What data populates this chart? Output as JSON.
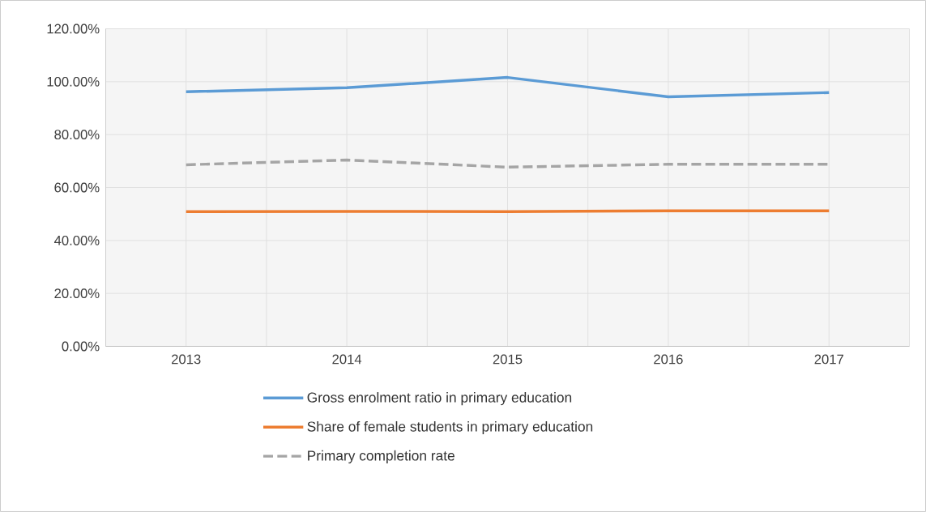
{
  "chart_data": {
    "type": "line",
    "categories": [
      "2013",
      "2014",
      "2015",
      "2016",
      "2017"
    ],
    "series": [
      {
        "name": "Gross enrolment ratio in primary education",
        "color": "#5b9bd5",
        "line_style": "solid",
        "values": [
          96.2,
          97.7,
          101.6,
          94.3,
          95.9
        ]
      },
      {
        "name": "Share of female students in primary education",
        "color": "#ed7d31",
        "line_style": "solid",
        "values": [
          50.9,
          51.0,
          50.9,
          51.2,
          51.2
        ]
      },
      {
        "name": "Primary completion rate",
        "color": "#a5a5a5",
        "line_style": "dashed",
        "values": [
          68.6,
          70.4,
          67.7,
          68.8,
          68.8
        ]
      }
    ],
    "ylim": [
      0,
      120
    ],
    "yticks": [
      {
        "value": 0,
        "label": "0.00%"
      },
      {
        "value": 20,
        "label": "20.00%"
      },
      {
        "value": 40,
        "label": "40.00%"
      },
      {
        "value": 60,
        "label": "60.00%"
      },
      {
        "value": 80,
        "label": "80.00%"
      },
      {
        "value": 100,
        "label": "100.00%"
      },
      {
        "value": 120,
        "label": "120.00%"
      }
    ],
    "grid": true,
    "legend": "bottom",
    "marker": "none"
  }
}
